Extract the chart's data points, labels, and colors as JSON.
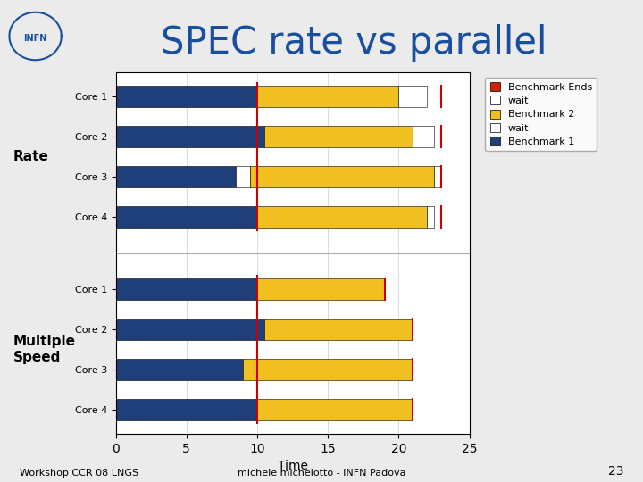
{
  "title": "SPEC rate vs parallel",
  "xlabel": "Time",
  "xlim": [
    0,
    25
  ],
  "xticks": [
    0,
    5,
    10,
    15,
    20,
    25
  ],
  "rate_labels": [
    "Core 1",
    "Core 2",
    "Core 3",
    "Core 4"
  ],
  "rate_bench1": [
    10.0,
    10.5,
    8.5,
    10.0
  ],
  "rate_wait1": [
    0.0,
    0.0,
    1.0,
    0.0
  ],
  "rate_bench2": [
    10.0,
    10.5,
    13.0,
    12.0
  ],
  "rate_wait2": [
    2.0,
    1.5,
    0.5,
    0.5
  ],
  "rate_redline": [
    23.0,
    23.0,
    23.0,
    23.0
  ],
  "ms_labels": [
    "Core 1",
    "Core 2",
    "Core 3",
    "Core 4"
  ],
  "ms_bench1": [
    10.0,
    10.5,
    9.0,
    10.0
  ],
  "ms_wait1": [
    0.0,
    0.0,
    0.0,
    0.0
  ],
  "ms_bench2": [
    9.0,
    10.5,
    12.0,
    11.0
  ],
  "ms_wait2": [
    0.0,
    0.0,
    0.0,
    0.0
  ],
  "ms_redline": [
    19.0,
    21.0,
    21.0,
    21.0
  ],
  "rate_vline_x": 10.0,
  "ms_vline_x": 10.0,
  "color_bench1": "#1f3f7a",
  "color_bench2": "#f0c020",
  "color_wait": "#ffffff",
  "color_redline": "#cc0000",
  "color_benchend": "#cc2200",
  "rate_group_label": "Rate",
  "ms_group_label": "Multiple\nSpeed",
  "legend_labels": [
    "Benchmark Ends",
    "wait",
    "Benchmark 2",
    "wait",
    "Benchmark 1"
  ],
  "background_color": "#ebebeb",
  "plot_bg": "#ffffff",
  "fontsize_title": 30,
  "fontsize_axis": 10,
  "fontsize_tick": 8,
  "fontsize_legend": 8,
  "fontsize_group": 11
}
